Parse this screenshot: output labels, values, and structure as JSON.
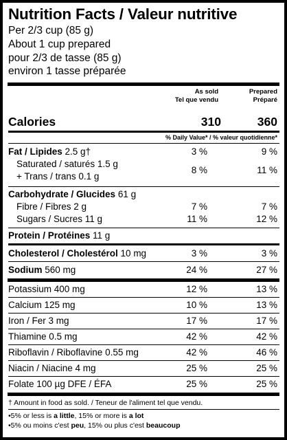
{
  "title": "Nutrition Facts / Valeur nutritive",
  "serving": [
    "Per 2/3 cup (85 g)",
    "About 1 cup prepared",
    "pour 2/3 de tasse (85 g)",
    "environ 1 tasse préparée"
  ],
  "columns": {
    "as_sold": [
      "As sold",
      "Tel que vendu"
    ],
    "prepared": [
      "Prepared",
      "Préparé"
    ]
  },
  "calories": {
    "label": "Calories",
    "as_sold": "310",
    "prepared": "360"
  },
  "dv_header": "% Daily Value* / % valeur quotidienne*",
  "fat": {
    "label_bold": "Fat / Lipides",
    "amount": "2.5 g†",
    "as_sold": "3 %",
    "prepared": "9 %"
  },
  "sat": {
    "label": "Saturated / saturés 1.5 g",
    "label2": "+ Trans / trans 0.1 g",
    "as_sold": "8 %",
    "prepared": "11 %"
  },
  "carb": {
    "label_bold": "Carbohydrate / Glucides",
    "amount": "61 g"
  },
  "fibre": {
    "label": "Fibre / Fibres 2 g",
    "as_sold": "7 %",
    "prepared": "7 %"
  },
  "sugars": {
    "label": "Sugars / Sucres 11 g",
    "as_sold": "11 %",
    "prepared": "12 %"
  },
  "protein": {
    "label_bold": "Protein / Protéines",
    "amount": "11 g"
  },
  "chol": {
    "label_bold": "Cholesterol / Cholestérol",
    "amount": "10 mg",
    "as_sold": "3 %",
    "prepared": "3 %"
  },
  "sodium": {
    "label_bold": "Sodium",
    "amount": "560 mg",
    "as_sold": "24 %",
    "prepared": "27 %"
  },
  "minerals": [
    {
      "label": "Potassium 400 mg",
      "as_sold": "12 %",
      "prepared": "13 %"
    },
    {
      "label": "Calcium 125 mg",
      "as_sold": "10 %",
      "prepared": "13 %"
    },
    {
      "label": "Iron / Fer 3 mg",
      "as_sold": "17 %",
      "prepared": "17 %"
    },
    {
      "label": "Thiamine 0.5 mg",
      "as_sold": "42 %",
      "prepared": "42 %"
    },
    {
      "label": "Riboflavin / Riboflavine 0.55 mg",
      "as_sold": "42 %",
      "prepared": "46 %"
    },
    {
      "label": "Niacin / Niacine 4 mg",
      "as_sold": "25 %",
      "prepared": "25 %"
    },
    {
      "label": "Folate 100 µg DFE / ÉFA",
      "as_sold": "25 %",
      "prepared": "25 %"
    }
  ],
  "footnote_dagger": "† Amount in food as sold. / Teneur de l'aliment tel que vendu.",
  "footnote_dv_en": {
    "pre": "•5% or less is ",
    "little": "a little",
    "mid": ", 15% or more is ",
    "lot": "a lot"
  },
  "footnote_dv_fr": {
    "pre": "•5% ou moins c'est ",
    "little": "peu",
    "mid": ", 15% ou plus c'est ",
    "lot": "beaucoup"
  }
}
